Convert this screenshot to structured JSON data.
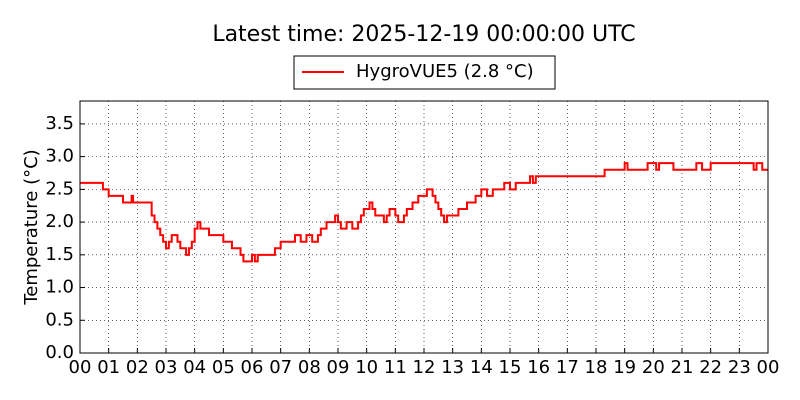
{
  "chart_data": {
    "type": "line",
    "title": "Latest time: 2025-12-19 00:00:00 UTC",
    "y_label": "Temperature (°C)",
    "drawstyle": "steps-post",
    "grid": true,
    "legend": "upper center",
    "xlim": [
      0,
      24
    ],
    "ylim": [
      0,
      3.85
    ],
    "xticks": [
      {
        "value": 0,
        "label": "00"
      },
      {
        "value": 1,
        "label": "01"
      },
      {
        "value": 2,
        "label": "02"
      },
      {
        "value": 3,
        "label": "03"
      },
      {
        "value": 4,
        "label": "04"
      },
      {
        "value": 5,
        "label": "05"
      },
      {
        "value": 6,
        "label": "06"
      },
      {
        "value": 7,
        "label": "07"
      },
      {
        "value": 8,
        "label": "08"
      },
      {
        "value": 9,
        "label": "09"
      },
      {
        "value": 10,
        "label": "10"
      },
      {
        "value": 11,
        "label": "11"
      },
      {
        "value": 12,
        "label": "12"
      },
      {
        "value": 13,
        "label": "13"
      },
      {
        "value": 14,
        "label": "14"
      },
      {
        "value": 15,
        "label": "15"
      },
      {
        "value": 16,
        "label": "16"
      },
      {
        "value": 17,
        "label": "17"
      },
      {
        "value": 18,
        "label": "18"
      },
      {
        "value": 19,
        "label": "19"
      },
      {
        "value": 20,
        "label": "20"
      },
      {
        "value": 21,
        "label": "21"
      },
      {
        "value": 22,
        "label": "22"
      },
      {
        "value": 23,
        "label": "23"
      },
      {
        "value": 24,
        "label": "00"
      }
    ],
    "yticks": [
      {
        "value": 0,
        "label": "0.0"
      },
      {
        "value": 0.5,
        "label": "0.5"
      },
      {
        "value": 1,
        "label": "1.0"
      },
      {
        "value": 1.5,
        "label": "1.5"
      },
      {
        "value": 2,
        "label": "2.0"
      },
      {
        "value": 2.5,
        "label": "2.5"
      },
      {
        "value": 3,
        "label": "3.0"
      },
      {
        "value": 3.5,
        "label": "3.5"
      }
    ],
    "x": [
      0,
      0.8,
      1.0,
      1.5,
      1.8,
      1.85,
      2.4,
      2.5,
      2.6,
      2.7,
      2.8,
      2.9,
      3.0,
      3.1,
      3.2,
      3.4,
      3.5,
      3.7,
      3.8,
      3.9,
      4.0,
      4.1,
      4.2,
      4.5,
      5.0,
      5.3,
      5.6,
      5.7,
      6.0,
      6.1,
      6.2,
      6.3,
      6.8,
      7.0,
      7.5,
      7.7,
      7.9,
      8.1,
      8.3,
      8.4,
      8.6,
      8.9,
      9.0,
      9.1,
      9.3,
      9.5,
      9.7,
      9.8,
      9.9,
      10.1,
      10.2,
      10.3,
      10.6,
      10.7,
      10.8,
      11.0,
      11.1,
      11.3,
      11.4,
      11.6,
      11.8,
      12.1,
      12.3,
      12.4,
      12.5,
      12.6,
      12.7,
      12.8,
      13.2,
      13.5,
      13.8,
      14.0,
      14.2,
      14.4,
      14.8,
      15.0,
      15.2,
      15.7,
      15.8,
      15.9,
      18.3,
      19.0,
      19.1,
      19.8,
      20.1,
      20.2,
      20.7,
      21.5,
      21.7,
      22.0,
      23.5,
      23.6,
      23.8,
      24.0
    ],
    "series": [
      {
        "name": "HygroVUE5 (2.8 °C)",
        "color": "#ff0000",
        "values": [
          2.6,
          2.5,
          2.4,
          2.3,
          2.4,
          2.3,
          2.3,
          2.1,
          2.0,
          1.9,
          1.8,
          1.7,
          1.6,
          1.7,
          1.8,
          1.7,
          1.6,
          1.5,
          1.6,
          1.7,
          1.9,
          2.0,
          1.9,
          1.8,
          1.7,
          1.6,
          1.5,
          1.4,
          1.5,
          1.4,
          1.5,
          1.5,
          1.6,
          1.7,
          1.8,
          1.7,
          1.8,
          1.7,
          1.8,
          1.9,
          2.0,
          2.1,
          2.0,
          1.9,
          2.0,
          1.9,
          2.0,
          2.1,
          2.2,
          2.3,
          2.2,
          2.1,
          2.0,
          2.1,
          2.2,
          2.1,
          2.0,
          2.1,
          2.2,
          2.3,
          2.4,
          2.5,
          2.4,
          2.3,
          2.2,
          2.1,
          2.0,
          2.1,
          2.2,
          2.3,
          2.4,
          2.5,
          2.4,
          2.5,
          2.6,
          2.5,
          2.6,
          2.7,
          2.6,
          2.7,
          2.8,
          2.9,
          2.8,
          2.9,
          2.8,
          2.9,
          2.8,
          2.9,
          2.8,
          2.9,
          2.8,
          2.9,
          2.8,
          2.8
        ]
      }
    ]
  }
}
